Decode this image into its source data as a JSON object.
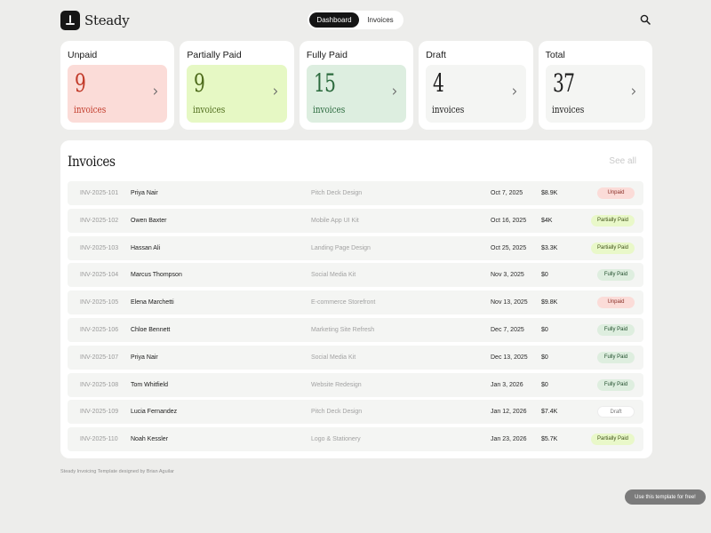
{
  "app": {
    "name": "Steady"
  },
  "nav": {
    "tabs": [
      {
        "label": "Dashboard"
      },
      {
        "label": "Invoices"
      }
    ]
  },
  "icons": {
    "search": "search-icon",
    "chevron": "chevron-right-icon",
    "logo": "logo-icon"
  },
  "summary": {
    "cards": [
      {
        "title": "Unpaid",
        "count": "9",
        "unit": "invoices",
        "bg": "#fbdcd8",
        "color": "#c23b2a"
      },
      {
        "title": "Partially Paid",
        "count": "9",
        "unit": "invoices",
        "bg": "#e6f8c4",
        "color": "#4e6b1c"
      },
      {
        "title": "Fully Paid",
        "count": "15",
        "unit": "invoices",
        "bg": "#ddeee0",
        "color": "#2b6a3d"
      },
      {
        "title": "Draft",
        "count": "4",
        "unit": "invoices",
        "bg": "#f4f5f3",
        "color": "#1e1e1e"
      },
      {
        "title": "Total",
        "count": "37",
        "unit": "invoices",
        "bg": "#f4f5f3",
        "color": "#1e1e1e"
      }
    ]
  },
  "invoices": {
    "title": "Invoices",
    "see_all": "See all",
    "rows": [
      {
        "id": "INV-2025-101",
        "name": "Priya Nair",
        "project": "Pitch Deck Design",
        "date": "Oct 7, 2025",
        "amount": "$8.9K",
        "status": "Unpaid",
        "status_key": "unpaid"
      },
      {
        "id": "INV-2025-102",
        "name": "Owen Baxter",
        "project": "Mobile App UI Kit",
        "date": "Oct 16, 2025",
        "amount": "$4K",
        "status": "Partially Paid",
        "status_key": "partial"
      },
      {
        "id": "INV-2025-103",
        "name": "Hassan Ali",
        "project": "Landing Page Design",
        "date": "Oct 25, 2025",
        "amount": "$3.3K",
        "status": "Partially Paid",
        "status_key": "partial"
      },
      {
        "id": "INV-2025-104",
        "name": "Marcus Thompson",
        "project": "Social Media Kit",
        "date": "Nov 3, 2025",
        "amount": "$0",
        "status": "Fully Paid",
        "status_key": "fully"
      },
      {
        "id": "INV-2025-105",
        "name": "Elena Marchetti",
        "project": "E-commerce Storefront",
        "date": "Nov 13, 2025",
        "amount": "$9.8K",
        "status": "Unpaid",
        "status_key": "unpaid"
      },
      {
        "id": "INV-2025-106",
        "name": "Chloe Bennett",
        "project": "Marketing Site Refresh",
        "date": "Dec 7, 2025",
        "amount": "$0",
        "status": "Fully Paid",
        "status_key": "fully"
      },
      {
        "id": "INV-2025-107",
        "name": "Priya Nair",
        "project": "Social Media Kit",
        "date": "Dec 13, 2025",
        "amount": "$0",
        "status": "Fully Paid",
        "status_key": "fully"
      },
      {
        "id": "INV-2025-108",
        "name": "Tom Whitfield",
        "project": "Website Redesign",
        "date": "Jan 3, 2026",
        "amount": "$0",
        "status": "Fully Paid",
        "status_key": "fully"
      },
      {
        "id": "INV-2025-109",
        "name": "Lucia Fernandez",
        "project": "Pitch Deck Design",
        "date": "Jan 12, 2026",
        "amount": "$7.4K",
        "status": "Draft",
        "status_key": "draft"
      },
      {
        "id": "INV-2025-110",
        "name": "Noah Kessler",
        "project": "Logo & Stationery",
        "date": "Jan 23, 2026",
        "amount": "$5.7K",
        "status": "Partially Paid",
        "status_key": "partial"
      }
    ]
  },
  "footer": {
    "credit": "Steady Invoicing Template designed by Brian Aguilar"
  },
  "cta": {
    "label": "Use this template for free!"
  }
}
